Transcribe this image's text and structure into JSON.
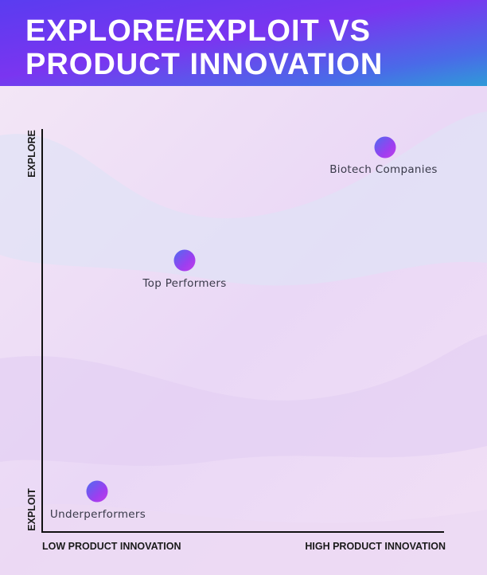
{
  "header": {
    "title_lines": [
      "EXPLORE/EXPLOIT VS",
      "PRODUCT INNOVATION"
    ]
  },
  "axes": {
    "y_top": "EXPLORE",
    "y_bottom": "EXPLOIT",
    "x_left": "LOW PRODUCT INNOVATION",
    "x_right": "HIGH PRODUCT INNOVATION"
  },
  "nodes": [
    {
      "label": "Biotech Companies"
    },
    {
      "label": "Top Performers"
    },
    {
      "label": "Underperformers"
    }
  ]
}
